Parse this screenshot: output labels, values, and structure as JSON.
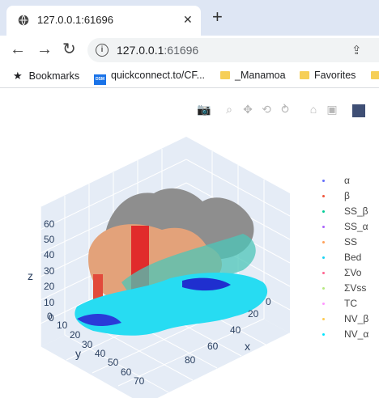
{
  "browser": {
    "tab": {
      "title": "127.0.0.1:61696",
      "close": "✕"
    },
    "new_tab": "+",
    "address": {
      "host": "127.0.0.1",
      "port": ":61696"
    },
    "bookmarks": [
      {
        "label": "Bookmarks",
        "icon": "star-icon"
      },
      {
        "label": "quickconnect.to/CF...",
        "icon": "dsm-icon"
      },
      {
        "label": "_Manamoa",
        "icon": "folder-icon"
      },
      {
        "label": "Favorites",
        "icon": "folder-icon"
      }
    ]
  },
  "plot": {
    "legend": [
      {
        "label": "α",
        "color": "#636efa"
      },
      {
        "label": "β",
        "color": "#ef553b"
      },
      {
        "label": "SS_β",
        "color": "#00cc96"
      },
      {
        "label": "SS_α",
        "color": "#ab63fa"
      },
      {
        "label": "SS",
        "color": "#ffa15a"
      },
      {
        "label": "Bed",
        "color": "#19d3f3"
      },
      {
        "label": "ΣVo",
        "color": "#ff6692"
      },
      {
        "label": "ΣVss",
        "color": "#b6e880"
      },
      {
        "label": "TC",
        "color": "#ff97ff"
      },
      {
        "label": "NV_β",
        "color": "#fecb52"
      },
      {
        "label": "NV_α",
        "color": "#00e5ff"
      }
    ],
    "axes": {
      "z": {
        "title": "z",
        "ticks": [
          "60",
          "50",
          "40",
          "30",
          "20",
          "10",
          "0"
        ]
      },
      "y": {
        "title": "y",
        "ticks": [
          "0",
          "10",
          "20",
          "30",
          "40",
          "50",
          "60",
          "70"
        ]
      },
      "x": {
        "title": "x",
        "ticks": [
          "0",
          "20",
          "40",
          "60",
          "80"
        ]
      }
    }
  }
}
